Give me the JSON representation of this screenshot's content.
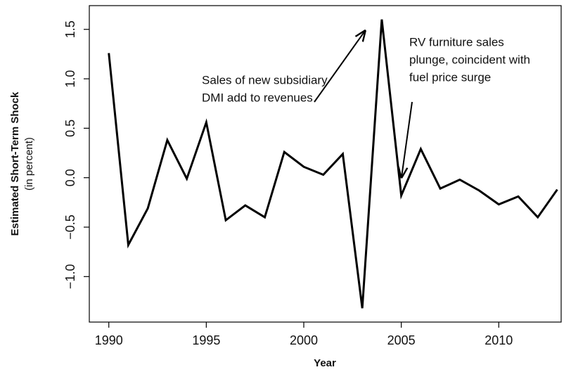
{
  "chart_data": {
    "type": "line",
    "x_label": "Year",
    "y_label": "Estimated Short-Term Shock",
    "y_sublabel": "(in percent)",
    "x": [
      1990,
      1991,
      1992,
      1993,
      1994,
      1995,
      1996,
      1997,
      1998,
      1999,
      2000,
      2001,
      2002,
      2003,
      2004,
      2005,
      2006,
      2007,
      2008,
      2009,
      2010,
      2011,
      2012,
      2013
    ],
    "values": [
      1.26,
      -0.68,
      -0.31,
      0.38,
      -0.01,
      0.56,
      -0.43,
      -0.28,
      -0.4,
      0.26,
      0.11,
      0.03,
      0.24,
      -1.32,
      1.6,
      -0.18,
      0.29,
      -0.11,
      -0.02,
      -0.13,
      -0.27,
      -0.19,
      -0.4,
      -0.12
    ],
    "color": "#000000",
    "xlim": [
      1989,
      2013.2
    ],
    "ylim": [
      -1.46,
      1.74
    ],
    "xticks": [
      1990,
      1995,
      2000,
      2005,
      2010
    ],
    "yticks": [
      {
        "value": -1,
        "label": "−1.0"
      },
      {
        "value": -0.5,
        "label": "−0.5"
      },
      {
        "value": 0,
        "label": "0.0"
      },
      0.5,
      {
        "value": 1,
        "label": "1.0"
      },
      1.5
    ],
    "annotations": [
      {
        "lines": [
          "Sales of new subsidiary",
          "DMI add to revenues"
        ]
      },
      {
        "lines": [
          "RV furniture sales",
          "plunge, coincident with",
          "fuel price surge"
        ]
      }
    ]
  }
}
